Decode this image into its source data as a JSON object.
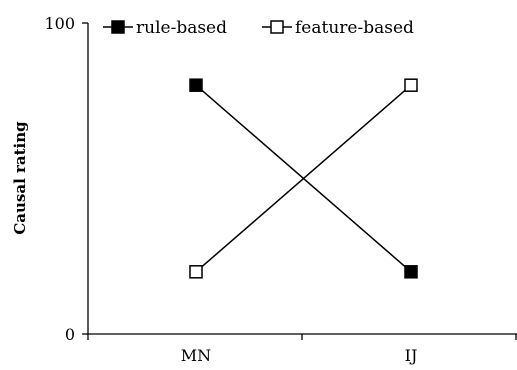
{
  "chart_data": {
    "type": "line",
    "categories": [
      "MN",
      "IJ"
    ],
    "ylabel": "Causal rating",
    "xlabel": "",
    "ylim": [
      0,
      100
    ],
    "yticks": [
      0,
      100
    ],
    "legend_position": "top-left",
    "grid": false,
    "series": [
      {
        "name": "rule-based",
        "values": [
          80,
          20
        ],
        "marker": "filled-square",
        "color": "#000000"
      },
      {
        "name": "feature-based",
        "values": [
          20,
          80
        ],
        "marker": "open-square",
        "color": "#000000"
      }
    ]
  }
}
